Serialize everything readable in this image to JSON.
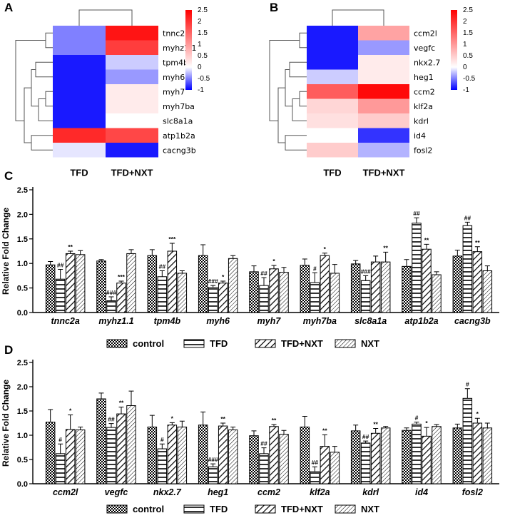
{
  "colors": {
    "heat_low": "#0000ff",
    "heat_mid": "#ffffff",
    "heat_high": "#ff0000",
    "bar_stroke": "#000000"
  },
  "chart_data": [
    {
      "panel": "A",
      "type": "heatmap",
      "columns": [
        "TFD",
        "TFD+NXT"
      ],
      "rows": [
        "tnnc2a",
        "myhz1.1",
        "tpm4b",
        "myh6",
        "myh7",
        "myh7ba",
        "slc8a1a",
        "atp1b2a",
        "cacng3b"
      ],
      "values": [
        [
          -0.5,
          2.3
        ],
        [
          -0.5,
          1.9
        ],
        [
          -0.9,
          -0.2
        ],
        [
          -0.9,
          -0.4
        ],
        [
          -0.9,
          0.2
        ],
        [
          -0.9,
          0.2
        ],
        [
          -0.9,
          0.0
        ],
        [
          2.1,
          1.8
        ],
        [
          -0.1,
          -0.9
        ]
      ],
      "colorbar": {
        "ticks": [
          "2.5",
          "2",
          "1.5",
          "1",
          "0.5",
          "0",
          "-0.5",
          "-1"
        ],
        "min": -1,
        "max": 2.5
      }
    },
    {
      "panel": "B",
      "type": "heatmap",
      "columns": [
        "TFD",
        "TFD+NXT"
      ],
      "rows": [
        "ccm2l",
        "vegfc",
        "nkx2.7",
        "heg1",
        "ccm2",
        "klf2a",
        "kdrl",
        "id4",
        "fosl2"
      ],
      "values": [
        [
          -0.9,
          0.9
        ],
        [
          -0.9,
          -0.4
        ],
        [
          -0.9,
          0.2
        ],
        [
          -0.2,
          0.2
        ],
        [
          1.6,
          2.4
        ],
        [
          0.4,
          1.0
        ],
        [
          0.3,
          0.5
        ],
        [
          0.0,
          -0.8
        ],
        [
          0.5,
          -0.3
        ]
      ],
      "colorbar": {
        "ticks": [
          "2.5",
          "2",
          "1.5",
          "1",
          "0.5",
          "0",
          "-0.5",
          "-1"
        ],
        "min": -1,
        "max": 2.5
      }
    },
    {
      "panel": "C",
      "type": "bar",
      "ylabel": "Relative Fold Change",
      "ylim": [
        0,
        2.5
      ],
      "yticks": [
        "0.0",
        "0.5",
        "1.0",
        "1.5",
        "2.0",
        "2.5"
      ],
      "categories": [
        "tnnc2a",
        "myhz1.1",
        "tpm4b",
        "myh6",
        "myh7",
        "myh7ba",
        "slc8a1a",
        "atp1b2a",
        "cacng3b"
      ],
      "series": [
        {
          "name": "control",
          "values": [
            0.97,
            1.05,
            1.16,
            1.16,
            0.83,
            0.96,
            0.99,
            0.94,
            1.15
          ],
          "errors": [
            0.07,
            0.03,
            0.12,
            0.22,
            0.12,
            0.13,
            0.07,
            0.14,
            0.12
          ],
          "sig": [
            "",
            "",
            "",
            "",
            "",
            "",
            "",
            "",
            ""
          ]
        },
        {
          "name": "TFD",
          "values": [
            0.68,
            0.24,
            0.73,
            0.51,
            0.55,
            0.61,
            0.65,
            1.82,
            1.77
          ],
          "errors": [
            0.2,
            0.08,
            0.12,
            0.04,
            0.16,
            0.2,
            0.1,
            0.11,
            0.07
          ],
          "sig": [
            "##",
            "###",
            "##",
            "###",
            "##",
            "#",
            "###",
            "##",
            "##"
          ]
        },
        {
          "name": "TFD+NXT",
          "values": [
            1.2,
            0.6,
            1.25,
            0.6,
            0.89,
            1.16,
            1.03,
            1.29,
            1.24
          ],
          "errors": [
            0.05,
            0.04,
            0.16,
            0.04,
            0.07,
            0.05,
            0.12,
            0.1,
            0.1
          ],
          "sig": [
            "**",
            "***",
            "***",
            "*",
            "*",
            "*",
            "",
            "**",
            "**"
          ]
        },
        {
          "name": "NXT",
          "values": [
            1.18,
            1.2,
            0.8,
            1.1,
            0.82,
            0.8,
            1.03,
            0.77,
            0.85
          ],
          "errors": [
            0.08,
            0.08,
            0.05,
            0.06,
            0.1,
            0.18,
            0.2,
            0.06,
            0.1
          ],
          "sig": [
            "",
            "",
            "",
            "",
            "",
            "",
            "**",
            "",
            ""
          ]
        }
      ],
      "legend": [
        "control",
        "TFD",
        "TFD+NXT",
        "NXT"
      ]
    },
    {
      "panel": "D",
      "type": "bar",
      "ylabel": "Relative Fold Change",
      "ylim": [
        0,
        2.5
      ],
      "yticks": [
        "0.0",
        "0.5",
        "1.0",
        "1.5",
        "2.0",
        "2.5"
      ],
      "categories": [
        "ccm2l",
        "vegfc",
        "nkx2.7",
        "heg1",
        "ccm2",
        "klf2a",
        "kdrl",
        "id4",
        "fosl2"
      ],
      "series": [
        {
          "name": "control",
          "values": [
            1.27,
            1.75,
            1.17,
            1.21,
            0.99,
            1.17,
            1.09,
            1.1,
            1.15
          ],
          "errors": [
            0.26,
            0.12,
            0.24,
            0.27,
            0.1,
            0.22,
            0.12,
            0.05,
            0.08
          ],
          "sig": [
            "",
            "",
            "",
            "",
            "",
            "",
            "",
            "",
            ""
          ]
        },
        {
          "name": "TFD",
          "values": [
            0.62,
            1.16,
            0.72,
            0.35,
            0.62,
            0.25,
            0.84,
            1.23,
            1.76
          ],
          "errors": [
            0.2,
            0.08,
            0.1,
            0.06,
            0.12,
            0.1,
            0.04,
            0.04,
            0.2
          ],
          "sig": [
            "#",
            "##",
            "#",
            "###",
            "##",
            "##",
            "##",
            "#",
            "#"
          ]
        },
        {
          "name": "TFD+NXT",
          "values": [
            1.12,
            1.44,
            1.21,
            1.19,
            1.18,
            0.77,
            1.04,
            0.98,
            1.25
          ],
          "errors": [
            0.3,
            0.14,
            0.05,
            0.06,
            0.04,
            0.24,
            0.1,
            0.18,
            0.1
          ],
          "sig": [
            "*",
            "**",
            "*",
            "**",
            "**",
            "**",
            "**",
            "*",
            "*"
          ]
        },
        {
          "name": "NXT",
          "values": [
            1.11,
            1.61,
            1.17,
            1.11,
            1.02,
            0.65,
            1.15,
            1.18,
            1.15
          ],
          "errors": [
            0.06,
            0.3,
            0.12,
            0.06,
            0.08,
            0.12,
            0.03,
            0.04,
            0.1
          ],
          "sig": [
            "",
            "",
            "",
            "",
            "",
            "",
            "",
            "",
            ""
          ]
        }
      ],
      "legend": [
        "control",
        "TFD",
        "TFD+NXT",
        "NXT"
      ]
    }
  ]
}
